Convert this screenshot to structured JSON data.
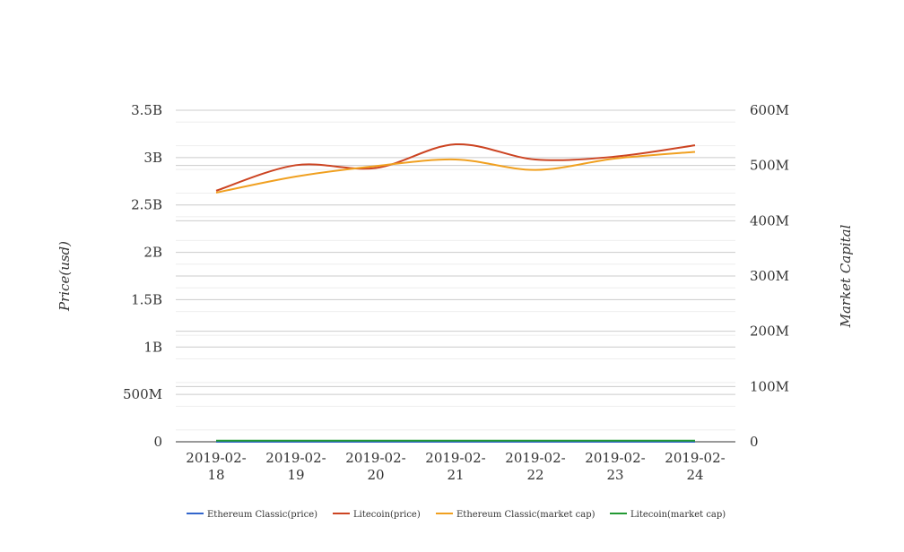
{
  "chart_data": {
    "type": "line",
    "x": [
      "2019-02-18",
      "2019-02-19",
      "2019-02-20",
      "2019-02-21",
      "2019-02-22",
      "2019-02-23",
      "2019-02-24"
    ],
    "x_tick_labels": [
      [
        "2019-02-",
        "18"
      ],
      [
        "2019-02-",
        "19"
      ],
      [
        "2019-02-",
        "20"
      ],
      [
        "2019-02-",
        "21"
      ],
      [
        "2019-02-",
        "22"
      ],
      [
        "2019-02-",
        "23"
      ],
      [
        "2019-02-",
        "24"
      ]
    ],
    "y_left": {
      "label": "Price(usd)",
      "range": [
        0,
        3500000000
      ],
      "tick_values": [
        0,
        500000000,
        1000000000,
        1500000000,
        2000000000,
        2500000000,
        3000000000,
        3500000000
      ],
      "tick_labels": [
        "0",
        "500M",
        "1B",
        "1.5B",
        "2B",
        "2.5B",
        "3B",
        "3.5B"
      ]
    },
    "y_right": {
      "label": "Market Capital",
      "range": [
        0,
        600000000
      ],
      "tick_values": [
        0,
        100000000,
        200000000,
        300000000,
        400000000,
        500000000,
        600000000
      ],
      "tick_labels": [
        "0",
        "100M",
        "200M",
        "300M",
        "400M",
        "500M",
        "600M"
      ]
    },
    "grid": true,
    "smooth": true,
    "legend_position": "bottom",
    "series": [
      {
        "name": "Ethereum Classic(price)",
        "color": "#3366cc",
        "axis": "left",
        "values": [
          4.1,
          4.3,
          4.4,
          4.5,
          4.3,
          4.2,
          4.6
        ]
      },
      {
        "name": "Litecoin(price)",
        "color": "#cc4422",
        "axis": "left",
        "values": [
          2650000000,
          2920000000,
          2890000000,
          3140000000,
          2980000000,
          3010000000,
          3130000000
        ]
      },
      {
        "name": "Ethereum Classic(market cap)",
        "color": "#f0a020",
        "axis": "left",
        "values": [
          2630000000,
          2800000000,
          2910000000,
          2980000000,
          2870000000,
          2990000000,
          3060000000
        ]
      },
      {
        "name": "Litecoin(market cap)",
        "color": "#229933",
        "axis": "right",
        "values": [
          2000000,
          2000000,
          2000000,
          2000000,
          2000000,
          2000000,
          2000000
        ]
      }
    ]
  }
}
